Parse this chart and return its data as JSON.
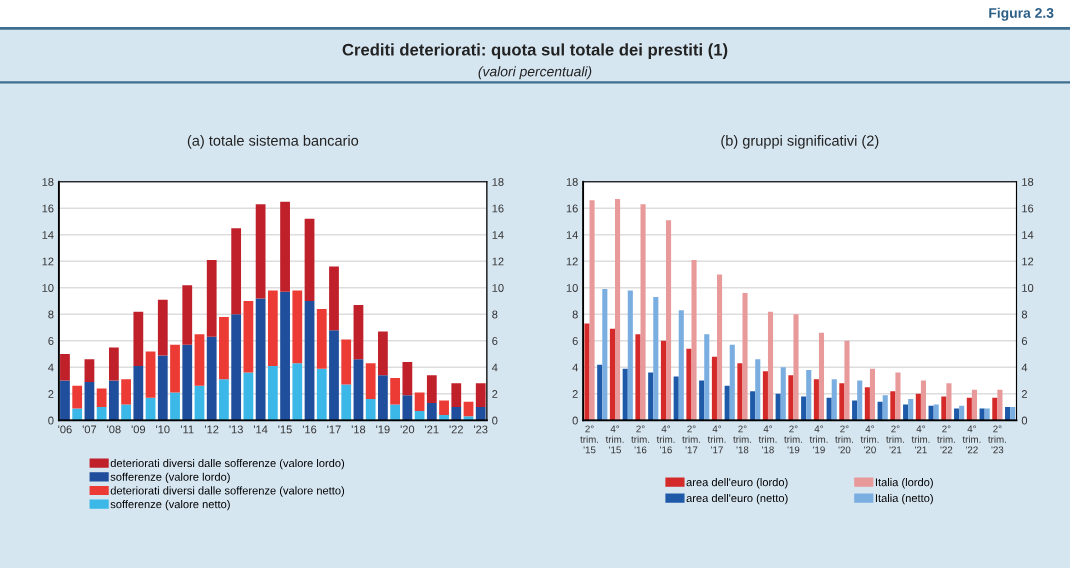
{
  "chart_data": [
    {
      "type": "bar",
      "stacked": true,
      "title": "(a) totale sistema bancario",
      "annotations": [
        "Figura 2.3",
        "Crediti deteriorati: quota sul totale dei prestiti (1)",
        "(valori percentuali)"
      ],
      "categories": [
        "'06",
        null,
        "'07",
        null,
        "'08",
        null,
        "'09",
        null,
        "'10",
        null,
        "'11",
        null,
        "'12",
        null,
        "'13",
        null,
        "'14",
        null,
        "'15",
        null,
        "'16",
        null,
        "'17",
        null,
        "'18",
        null,
        "'19",
        null,
        "'20",
        null,
        "'21",
        null,
        "'22",
        null,
        "'23"
      ],
      "series": [
        {
          "name": "sofferenze (valore lordo)",
          "color": "#1f4e9c",
          "values": [
            3.0,
            null,
            2.9,
            null,
            3.0,
            null,
            4.1,
            null,
            4.9,
            null,
            5.7,
            null,
            6.3,
            null,
            8.0,
            null,
            9.2,
            null,
            9.7,
            null,
            9.0,
            null,
            6.8,
            null,
            4.6,
            null,
            3.4,
            null,
            1.9,
            null,
            1.3,
            null,
            1.0,
            null,
            1.0
          ]
        },
        {
          "name": "sofferenze (valore netto)",
          "color": "#3bb8e8",
          "values": [
            null,
            0.9,
            null,
            1.0,
            null,
            1.2,
            null,
            1.7,
            null,
            2.1,
            null,
            2.6,
            null,
            3.1,
            null,
            3.6,
            null,
            4.1,
            null,
            4.3,
            null,
            3.9,
            null,
            2.7,
            null,
            1.6,
            null,
            1.2,
            null,
            0.7,
            null,
            0.4,
            null,
            0.3,
            null
          ]
        },
        {
          "name": "deteriorati diversi dalle sofferenze (valore lordo)",
          "color": "#c0202a",
          "values": [
            2.0,
            null,
            1.7,
            null,
            2.5,
            null,
            4.1,
            null,
            4.2,
            null,
            4.5,
            null,
            5.8,
            null,
            6.5,
            null,
            7.1,
            null,
            6.8,
            null,
            6.2,
            null,
            4.8,
            null,
            4.1,
            null,
            3.3,
            null,
            2.5,
            null,
            2.1,
            null,
            1.8,
            null,
            1.8
          ]
        },
        {
          "name": "deteriorati diversi dalle sofferenze (valore netto)",
          "color": "#ec3a34",
          "values": [
            null,
            1.7,
            null,
            1.4,
            null,
            1.9,
            null,
            3.5,
            null,
            3.6,
            null,
            3.9,
            null,
            4.7,
            null,
            5.4,
            null,
            5.7,
            null,
            5.5,
            null,
            4.5,
            null,
            3.4,
            null,
            2.7,
            null,
            2.0,
            null,
            1.4,
            null,
            1.1,
            null,
            1.1,
            null
          ]
        }
      ],
      "ylim": [
        0,
        18
      ],
      "yticks": [
        0,
        2,
        4,
        6,
        8,
        10,
        12,
        14,
        16,
        18
      ],
      "y2lim": [
        0,
        18
      ],
      "y2ticks": [
        0,
        2,
        4,
        6,
        8,
        10,
        12,
        14,
        16,
        18
      ],
      "grid": "y",
      "legend": "bottom"
    },
    {
      "type": "bar",
      "title": "(b) gruppi significativi (2)",
      "categories": [
        "2°\ntrim.\n'15",
        null,
        "4°\ntrim.\n'15",
        null,
        "2°\ntrim.\n'16",
        null,
        "4°\ntrim.\n'16",
        null,
        "2°\ntrim.\n'17",
        null,
        "4°\ntrim.\n'17",
        null,
        "2°\ntrim.\n'18",
        null,
        "4°\ntrim.\n'18",
        null,
        "2°\ntrim.\n'19",
        null,
        "4°\ntrim.\n'19",
        null,
        "2°\ntrim.\n'20",
        null,
        "4°\ntrim.\n'20",
        null,
        "2°\ntrim.\n'21",
        null,
        "4°\ntrim.\n'21",
        null,
        "2°\ntrim.\n'22",
        null,
        "4°\ntrim.\n'22",
        null,
        "2°\ntrim.\n'23",
        null
      ],
      "series": [
        {
          "name": "area dell'euro (lordo)",
          "color": "#d42a2a",
          "values": [
            7.3,
            null,
            6.9,
            null,
            6.5,
            null,
            6.0,
            null,
            5.4,
            null,
            4.8,
            null,
            4.3,
            null,
            3.7,
            null,
            3.4,
            null,
            3.1,
            null,
            2.8,
            null,
            2.5,
            null,
            2.2,
            null,
            2.0,
            null,
            1.8,
            null,
            1.7,
            null,
            1.7,
            null
          ]
        },
        {
          "name": "Italia (lordo)",
          "color": "#e8999a",
          "values": [
            16.6,
            null,
            16.7,
            null,
            16.3,
            null,
            15.1,
            null,
            12.1,
            null,
            11.0,
            null,
            9.6,
            null,
            8.2,
            null,
            8.0,
            null,
            6.6,
            null,
            6.0,
            null,
            3.9,
            null,
            3.6,
            null,
            3.0,
            null,
            2.8,
            null,
            2.3,
            null,
            2.3,
            null
          ]
        },
        {
          "name": "area dell'euro (netto)",
          "color": "#1f5aa8",
          "values": [
            null,
            4.2,
            null,
            3.9,
            null,
            3.6,
            null,
            3.3,
            null,
            3.0,
            null,
            2.6,
            null,
            2.2,
            null,
            2.0,
            null,
            1.8,
            null,
            1.7,
            null,
            1.5,
            null,
            1.4,
            null,
            1.2,
            null,
            1.1,
            null,
            0.9,
            null,
            0.9,
            null,
            1.0
          ]
        },
        {
          "name": "Italia (netto)",
          "color": "#7aaee0",
          "values": [
            null,
            9.9,
            null,
            9.8,
            null,
            9.3,
            null,
            8.3,
            null,
            6.5,
            null,
            5.7,
            null,
            4.6,
            null,
            4.0,
            null,
            3.8,
            null,
            3.1,
            null,
            3.0,
            null,
            1.9,
            null,
            1.6,
            null,
            1.2,
            null,
            1.1,
            null,
            0.9,
            null,
            1.0
          ]
        }
      ],
      "ylim": [
        0,
        18
      ],
      "yticks": [
        0,
        2,
        4,
        6,
        8,
        10,
        12,
        14,
        16,
        18
      ],
      "y2lim": [
        0,
        18
      ],
      "y2ticks": [
        0,
        2,
        4,
        6,
        8,
        10,
        12,
        14,
        16,
        18
      ],
      "grid": "y",
      "legend": "bottom"
    }
  ]
}
